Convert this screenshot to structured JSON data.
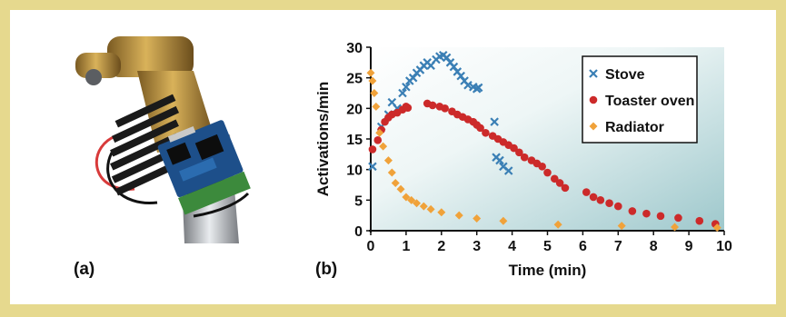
{
  "figure": {
    "panel_a_label": "(a)",
    "panel_b_label": "(b)",
    "border_color": "#e6d98e"
  },
  "photo": {
    "icon": "sensor-board-on-pipe-photo"
  },
  "chart_data": {
    "type": "scatter",
    "xlabel": "Time (min)",
    "ylabel": "Activations/min",
    "xlim": [
      0,
      10
    ],
    "ylim": [
      0,
      30
    ],
    "xticks": [
      0,
      1,
      2,
      3,
      4,
      5,
      6,
      7,
      8,
      9,
      10
    ],
    "yticks": [
      0,
      5,
      10,
      15,
      20,
      25,
      30
    ],
    "grid": false,
    "legend_position": "top-right",
    "background": "gradient teal-to-white",
    "series": [
      {
        "name": "Stove",
        "marker": "x",
        "color": "#3a7fb5",
        "points": [
          [
            0.05,
            10.5
          ],
          [
            0.3,
            17.0
          ],
          [
            0.5,
            19.0
          ],
          [
            0.6,
            21.0
          ],
          [
            0.75,
            20.0
          ],
          [
            0.9,
            22.5
          ],
          [
            1.0,
            23.5
          ],
          [
            1.1,
            24.5
          ],
          [
            1.2,
            25.0
          ],
          [
            1.3,
            25.8
          ],
          [
            1.4,
            26.3
          ],
          [
            1.5,
            27.0
          ],
          [
            1.6,
            27.5
          ],
          [
            1.7,
            27.0
          ],
          [
            1.85,
            28.0
          ],
          [
            1.95,
            28.5
          ],
          [
            2.05,
            28.7
          ],
          [
            2.15,
            28.3
          ],
          [
            2.25,
            27.5
          ],
          [
            2.35,
            26.8
          ],
          [
            2.45,
            26.0
          ],
          [
            2.55,
            25.3
          ],
          [
            2.65,
            24.5
          ],
          [
            2.75,
            23.8
          ],
          [
            2.9,
            23.5
          ],
          [
            3.0,
            23.2
          ],
          [
            3.05,
            23.4
          ],
          [
            3.5,
            17.8
          ],
          [
            3.55,
            12.0
          ],
          [
            3.65,
            11.5
          ],
          [
            3.75,
            10.5
          ],
          [
            3.9,
            9.8
          ]
        ]
      },
      {
        "name": "Toaster oven",
        "marker": "circle",
        "color": "#cc2a2a",
        "points": [
          [
            0.05,
            13.3
          ],
          [
            0.2,
            14.8
          ],
          [
            0.3,
            16.5
          ],
          [
            0.4,
            17.8
          ],
          [
            0.5,
            18.5
          ],
          [
            0.6,
            19.0
          ],
          [
            0.75,
            19.3
          ],
          [
            0.9,
            19.8
          ],
          [
            1.0,
            20.3
          ],
          [
            1.05,
            20.1
          ],
          [
            1.6,
            20.8
          ],
          [
            1.75,
            20.5
          ],
          [
            1.95,
            20.3
          ],
          [
            2.1,
            20.0
          ],
          [
            2.3,
            19.5
          ],
          [
            2.45,
            19.0
          ],
          [
            2.6,
            18.6
          ],
          [
            2.75,
            18.2
          ],
          [
            2.9,
            17.8
          ],
          [
            3.0,
            17.3
          ],
          [
            3.1,
            16.8
          ],
          [
            3.25,
            16.0
          ],
          [
            3.45,
            15.5
          ],
          [
            3.6,
            15.0
          ],
          [
            3.75,
            14.5
          ],
          [
            3.9,
            14.0
          ],
          [
            4.05,
            13.5
          ],
          [
            4.2,
            12.8
          ],
          [
            4.35,
            12.0
          ],
          [
            4.55,
            11.5
          ],
          [
            4.7,
            11.0
          ],
          [
            4.85,
            10.5
          ],
          [
            5.0,
            9.5
          ],
          [
            5.2,
            8.5
          ],
          [
            5.35,
            7.8
          ],
          [
            5.5,
            7.0
          ],
          [
            6.1,
            6.3
          ],
          [
            6.3,
            5.5
          ],
          [
            6.5,
            5.0
          ],
          [
            6.75,
            4.5
          ],
          [
            7.0,
            4.0
          ],
          [
            7.4,
            3.2
          ],
          [
            7.8,
            2.8
          ],
          [
            8.2,
            2.4
          ],
          [
            8.7,
            2.1
          ],
          [
            9.3,
            1.6
          ],
          [
            9.75,
            1.1
          ]
        ]
      },
      {
        "name": "Radiator",
        "marker": "diamond",
        "color": "#f0a23a",
        "points": [
          [
            0.0,
            25.8
          ],
          [
            0.05,
            24.5
          ],
          [
            0.1,
            22.5
          ],
          [
            0.15,
            20.3
          ],
          [
            0.25,
            16.0
          ],
          [
            0.35,
            13.8
          ],
          [
            0.5,
            11.5
          ],
          [
            0.6,
            9.5
          ],
          [
            0.7,
            7.8
          ],
          [
            0.85,
            6.8
          ],
          [
            1.0,
            5.5
          ],
          [
            1.15,
            5.0
          ],
          [
            1.3,
            4.5
          ],
          [
            1.5,
            4.0
          ],
          [
            1.7,
            3.5
          ],
          [
            2.0,
            3.0
          ],
          [
            2.5,
            2.5
          ],
          [
            3.0,
            2.0
          ],
          [
            3.75,
            1.6
          ],
          [
            5.3,
            1.0
          ],
          [
            7.1,
            0.8
          ],
          [
            8.6,
            0.6
          ],
          [
            9.8,
            0.5
          ]
        ]
      }
    ]
  }
}
